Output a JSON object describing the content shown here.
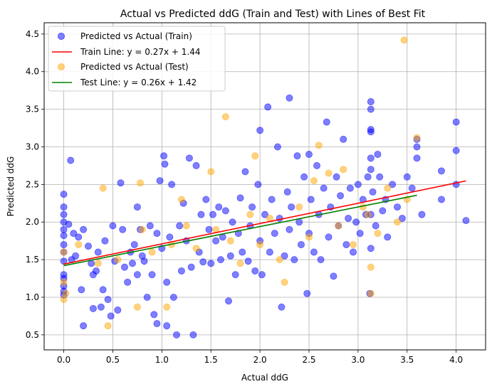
{
  "chart_data": {
    "type": "scatter",
    "title": "Actual vs Predicted ddG (Train and Test) with Lines of Best Fit",
    "xlabel": "Actual ddG",
    "ylabel": "Predicted ddG",
    "xlim": [
      -0.2,
      4.3
    ],
    "ylim": [
      0.3,
      4.65
    ],
    "xticks": [
      "0.0",
      "0.5",
      "1.0",
      "1.5",
      "2.0",
      "2.5",
      "3.0",
      "3.5",
      "4.0"
    ],
    "yticks": [
      "0.5",
      "1.0",
      "1.5",
      "2.0",
      "2.5",
      "3.0",
      "3.5",
      "4.0",
      "4.5"
    ],
    "grid": true,
    "legend_position": "top-left",
    "colors": {
      "train": "#0000ff",
      "test": "#ffa500",
      "train_line": "#ff0000",
      "test_line": "#008000"
    },
    "series": [
      {
        "name": "Predicted vs Actual (Train)",
        "kind": "scatter",
        "points": [
          [
            0.0,
            2.37
          ],
          [
            0.0,
            2.2
          ],
          [
            0.0,
            2.1
          ],
          [
            0.0,
            2.0
          ],
          [
            0.0,
            1.9
          ],
          [
            0.0,
            1.82
          ],
          [
            0.0,
            1.7
          ],
          [
            0.0,
            1.6
          ],
          [
            0.0,
            1.48
          ],
          [
            0.0,
            1.3
          ],
          [
            0.0,
            1.25
          ],
          [
            0.0,
            1.15
          ],
          [
            0.0,
            1.08
          ],
          [
            0.0,
            1.03
          ],
          [
            0.05,
            1.97
          ],
          [
            0.07,
            2.82
          ],
          [
            0.08,
            1.5
          ],
          [
            0.1,
            1.85
          ],
          [
            0.12,
            1.55
          ],
          [
            0.15,
            1.8
          ],
          [
            0.18,
            1.1
          ],
          [
            0.2,
            1.9
          ],
          [
            0.2,
            0.62
          ],
          [
            0.25,
            1.68
          ],
          [
            0.28,
            1.45
          ],
          [
            0.3,
            1.3
          ],
          [
            0.3,
            0.85
          ],
          [
            0.33,
            1.35
          ],
          [
            0.35,
            1.6
          ],
          [
            0.38,
            0.87
          ],
          [
            0.4,
            1.1
          ],
          [
            0.42,
            1.75
          ],
          [
            0.45,
            0.97
          ],
          [
            0.48,
            0.75
          ],
          [
            0.5,
            1.95
          ],
          [
            0.52,
            1.48
          ],
          [
            0.55,
            0.83
          ],
          [
            0.58,
            2.52
          ],
          [
            0.6,
            1.9
          ],
          [
            0.62,
            1.4
          ],
          [
            0.65,
            1.2
          ],
          [
            0.68,
            1.6
          ],
          [
            0.7,
            1.45
          ],
          [
            0.72,
            1.7
          ],
          [
            0.75,
            2.2
          ],
          [
            0.75,
            1.3
          ],
          [
            0.78,
            1.9
          ],
          [
            0.8,
            1.55
          ],
          [
            0.82,
            1.48
          ],
          [
            0.85,
            1.0
          ],
          [
            0.88,
            1.95
          ],
          [
            0.9,
            1.3
          ],
          [
            0.92,
            0.77
          ],
          [
            0.95,
            0.65
          ],
          [
            0.95,
            1.85
          ],
          [
            0.98,
            2.55
          ],
          [
            1.0,
            1.65
          ],
          [
            1.02,
            2.88
          ],
          [
            1.03,
            2.77
          ],
          [
            1.05,
            0.62
          ],
          [
            1.05,
            1.2
          ],
          [
            1.08,
            1.8
          ],
          [
            1.1,
            2.5
          ],
          [
            1.12,
            1.0
          ],
          [
            1.15,
            0.5
          ],
          [
            1.18,
            1.95
          ],
          [
            1.2,
            1.35
          ],
          [
            1.22,
            2.25
          ],
          [
            1.25,
            1.75
          ],
          [
            1.28,
            2.85
          ],
          [
            1.3,
            1.4
          ],
          [
            1.32,
            0.5
          ],
          [
            1.35,
            2.75
          ],
          [
            1.38,
            1.6
          ],
          [
            1.4,
            2.1
          ],
          [
            1.42,
            1.47
          ],
          [
            1.45,
            2.3
          ],
          [
            1.48,
            1.9
          ],
          [
            1.5,
            1.45
          ],
          [
            1.52,
            2.1
          ],
          [
            1.55,
            1.75
          ],
          [
            1.58,
            2.2
          ],
          [
            1.6,
            1.5
          ],
          [
            1.62,
            1.8
          ],
          [
            1.65,
            2.15
          ],
          [
            1.68,
            0.95
          ],
          [
            1.7,
            1.55
          ],
          [
            1.72,
            2.0
          ],
          [
            1.75,
            1.3
          ],
          [
            1.78,
            1.85
          ],
          [
            1.8,
            2.32
          ],
          [
            1.82,
            1.6
          ],
          [
            1.85,
            2.67
          ],
          [
            1.88,
            1.48
          ],
          [
            1.9,
            1.95
          ],
          [
            1.92,
            2.2
          ],
          [
            1.95,
            1.35
          ],
          [
            1.98,
            2.5
          ],
          [
            2.0,
            3.22
          ],
          [
            2.0,
            1.75
          ],
          [
            2.02,
            1.3
          ],
          [
            2.05,
            2.1
          ],
          [
            2.08,
            3.53
          ],
          [
            2.1,
            1.6
          ],
          [
            2.12,
            2.3
          ],
          [
            2.15,
            1.85
          ],
          [
            2.18,
            3.0
          ],
          [
            2.2,
            2.05
          ],
          [
            2.22,
            0.87
          ],
          [
            2.25,
            1.55
          ],
          [
            2.28,
            2.4
          ],
          [
            2.3,
            3.65
          ],
          [
            2.3,
            1.9
          ],
          [
            2.32,
            2.2
          ],
          [
            2.35,
            1.5
          ],
          [
            2.38,
            2.88
          ],
          [
            2.4,
            2.0
          ],
          [
            2.42,
            1.7
          ],
          [
            2.45,
            2.6
          ],
          [
            2.48,
            1.05
          ],
          [
            2.5,
            2.9
          ],
          [
            2.5,
            1.85
          ],
          [
            2.52,
            2.3
          ],
          [
            2.55,
            1.6
          ],
          [
            2.58,
            2.75
          ],
          [
            2.6,
            2.1
          ],
          [
            2.62,
            1.5
          ],
          [
            2.65,
            2.45
          ],
          [
            2.68,
            3.33
          ],
          [
            2.7,
            1.8
          ],
          [
            2.72,
            2.2
          ],
          [
            2.75,
            1.28
          ],
          [
            2.78,
            2.6
          ],
          [
            2.8,
            1.95
          ],
          [
            2.82,
            2.35
          ],
          [
            2.85,
            3.1
          ],
          [
            2.88,
            1.7
          ],
          [
            2.9,
            2.05
          ],
          [
            2.92,
            2.45
          ],
          [
            2.95,
            1.6
          ],
          [
            2.98,
            2.0
          ],
          [
            3.0,
            2.5
          ],
          [
            3.02,
            1.85
          ],
          [
            3.05,
            2.3
          ],
          [
            3.08,
            2.1
          ],
          [
            3.1,
            2.6
          ],
          [
            3.12,
            1.05
          ],
          [
            3.13,
            3.6
          ],
          [
            3.13,
            3.5
          ],
          [
            3.13,
            3.23
          ],
          [
            3.13,
            3.2
          ],
          [
            3.13,
            2.85
          ],
          [
            3.13,
            2.7
          ],
          [
            3.13,
            2.1
          ],
          [
            3.13,
            1.65
          ],
          [
            3.15,
            2.4
          ],
          [
            3.18,
            1.95
          ],
          [
            3.2,
            2.9
          ],
          [
            3.22,
            2.6
          ],
          [
            3.25,
            2.15
          ],
          [
            3.28,
            2.3
          ],
          [
            3.3,
            1.8
          ],
          [
            3.35,
            2.5
          ],
          [
            3.4,
            2.2
          ],
          [
            3.45,
            2.05
          ],
          [
            3.5,
            2.6
          ],
          [
            3.55,
            2.45
          ],
          [
            3.6,
            3.1
          ],
          [
            3.6,
            3.0
          ],
          [
            3.6,
            2.85
          ],
          [
            3.65,
            2.1
          ],
          [
            3.85,
            2.68
          ],
          [
            3.85,
            2.3
          ],
          [
            4.0,
            3.33
          ],
          [
            4.0,
            2.95
          ],
          [
            4.0,
            2.5
          ],
          [
            4.1,
            2.02
          ]
        ]
      },
      {
        "name": "Train Line: y = 0.27x + 1.44",
        "kind": "line",
        "slope": 0.27,
        "intercept": 1.44,
        "x_range": [
          0.0,
          4.1
        ]
      },
      {
        "name": "Predicted vs Actual (Test)",
        "kind": "scatter",
        "points": [
          [
            0.0,
            1.6
          ],
          [
            0.0,
            1.2
          ],
          [
            0.0,
            0.97
          ],
          [
            0.02,
            1.05
          ],
          [
            0.15,
            1.7
          ],
          [
            0.35,
            1.45
          ],
          [
            0.4,
            2.45
          ],
          [
            0.45,
            0.62
          ],
          [
            0.55,
            1.5
          ],
          [
            0.75,
            0.87
          ],
          [
            0.78,
            2.52
          ],
          [
            0.8,
            1.9
          ],
          [
            0.9,
            1.6
          ],
          [
            1.05,
            0.87
          ],
          [
            1.1,
            1.7
          ],
          [
            1.2,
            2.3
          ],
          [
            1.25,
            1.95
          ],
          [
            1.35,
            1.65
          ],
          [
            1.5,
            2.67
          ],
          [
            1.55,
            1.9
          ],
          [
            1.65,
            3.4
          ],
          [
            1.7,
            1.75
          ],
          [
            1.8,
            1.45
          ],
          [
            1.9,
            2.1
          ],
          [
            1.95,
            2.88
          ],
          [
            2.0,
            1.7
          ],
          [
            2.1,
            2.05
          ],
          [
            2.2,
            1.5
          ],
          [
            2.25,
            1.2
          ],
          [
            2.4,
            2.2
          ],
          [
            2.5,
            1.8
          ],
          [
            2.55,
            2.55
          ],
          [
            2.6,
            3.02
          ],
          [
            2.7,
            2.65
          ],
          [
            2.8,
            1.95
          ],
          [
            2.85,
            2.7
          ],
          [
            2.95,
            1.7
          ],
          [
            3.05,
            2.2
          ],
          [
            3.1,
            2.1
          ],
          [
            3.13,
            1.4
          ],
          [
            3.13,
            1.05
          ],
          [
            3.2,
            1.85
          ],
          [
            3.3,
            2.45
          ],
          [
            3.4,
            2.0
          ],
          [
            3.47,
            4.42
          ],
          [
            3.5,
            2.3
          ],
          [
            3.6,
            3.12
          ]
        ]
      },
      {
        "name": "Test Line: y = 0.26x + 1.42",
        "kind": "line",
        "slope": 0.26,
        "intercept": 1.42,
        "x_range": [
          0.0,
          3.6
        ]
      }
    ]
  }
}
